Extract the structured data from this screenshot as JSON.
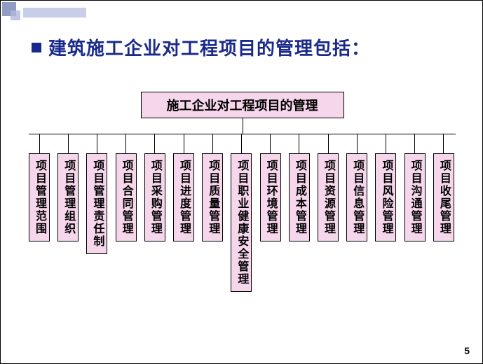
{
  "heading": "建筑施工企业对工程项目的管理包括：",
  "diagram": {
    "type": "tree",
    "root_label": "施工企业对工程项目的管理",
    "box_fill": "#f5d6eb",
    "box_border": "#000000",
    "line_color": "#000000",
    "children": [
      "项目管理范围",
      "项目管理组织",
      "项目管理责任制",
      "项目合同管理",
      "项目采购管理",
      "项目进度管理",
      "项目质量管理",
      "项目职业健康安全管理",
      "项目环境管理",
      "项目成本管理",
      "项目资源管理",
      "项目信息管理",
      "项目风险管理",
      "项目沟通管理",
      "项目收尾管理"
    ]
  },
  "colors": {
    "heading": "#1a2a8a",
    "bullet": "#1a2a8a",
    "corner_dark": "#4a5a9a",
    "corner_light": "#b0b8e0",
    "background": "#ffffff"
  },
  "fonts": {
    "heading_size": 26,
    "root_size": 18,
    "child_size": 16,
    "pagenum_size": 14
  },
  "page_number": "5"
}
